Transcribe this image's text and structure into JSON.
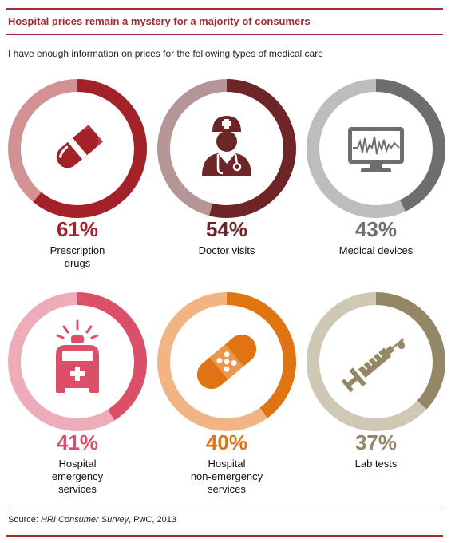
{
  "title": "Hospital prices remain a mystery for a majority of consumers",
  "subtitle": "I have enough information on prices for the following types of medical care",
  "source": {
    "prefix": "Source: ",
    "survey": "HRI Consumer Survey",
    "suffix": ", PwC, 2013"
  },
  "chart_data": {
    "type": "pie",
    "items": [
      {
        "label_lines": [
          "Prescription",
          "drugs"
        ],
        "value": 61,
        "value_label": "61%",
        "color": "#a32128",
        "track": "#d29294",
        "icon": "pill-icon"
      },
      {
        "label_lines": [
          "Doctor visits"
        ],
        "value": 54,
        "value_label": "54%",
        "color": "#6d2528",
        "track": "#b59696",
        "icon": "doctor-icon"
      },
      {
        "label_lines": [
          "Medical devices"
        ],
        "value": 43,
        "value_label": "43%",
        "color": "#6e6e6e",
        "track": "#bdbdbd",
        "icon": "monitor-icon"
      },
      {
        "label_lines": [
          "Hospital",
          "emergency",
          "services"
        ],
        "value": 41,
        "value_label": "41%",
        "color": "#db5068",
        "track": "#edacb8",
        "icon": "ambulance-icon"
      },
      {
        "label_lines": [
          "Hospital",
          "non-emergency",
          "services"
        ],
        "value": 40,
        "value_label": "40%",
        "color": "#e07412",
        "track": "#f1b482",
        "icon": "bandage-icon"
      },
      {
        "label_lines": [
          "Lab tests"
        ],
        "value": 37,
        "value_label": "37%",
        "color": "#948765",
        "track": "#cfc8b5",
        "icon": "syringe-icon"
      }
    ]
  }
}
